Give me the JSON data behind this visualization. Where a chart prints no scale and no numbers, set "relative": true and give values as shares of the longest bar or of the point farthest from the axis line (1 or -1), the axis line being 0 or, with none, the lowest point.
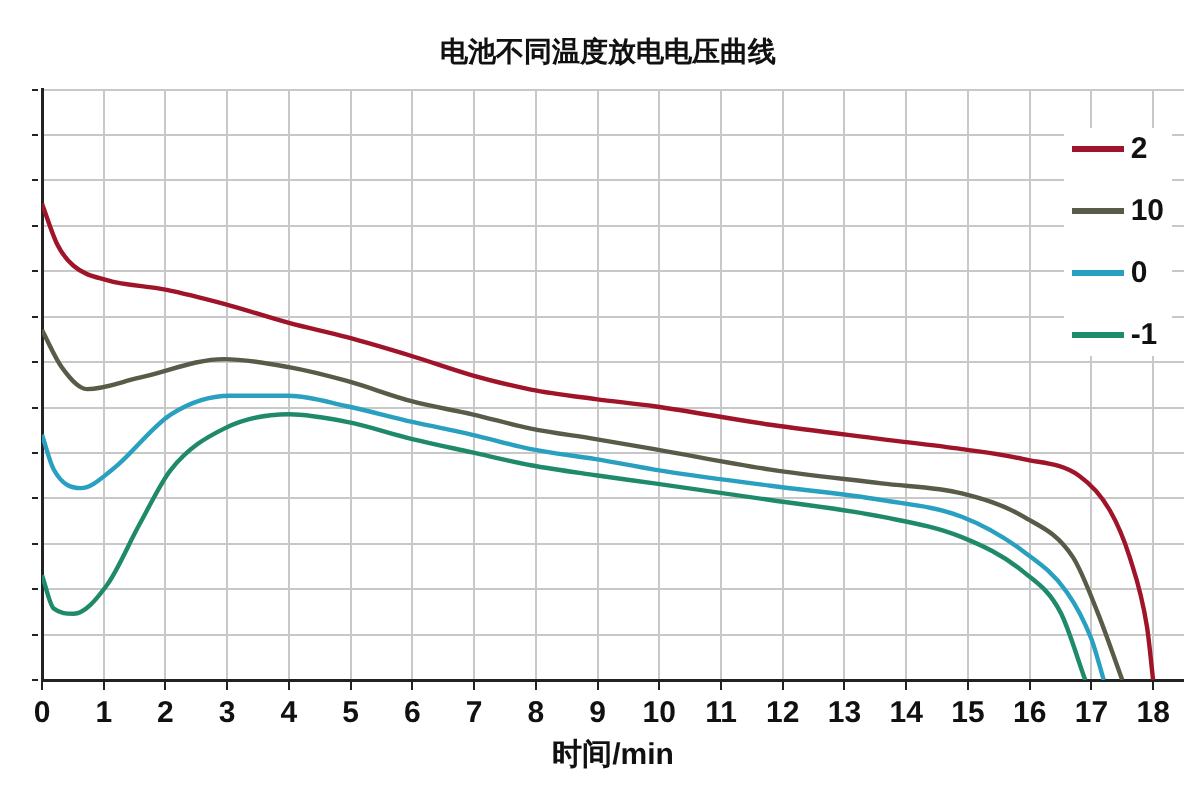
{
  "chart_data": {
    "type": "line",
    "title": "电池不同温度放电电压曲线",
    "xlabel": "时间/min",
    "relative": true,
    "xlim": [
      0,
      18.5
    ],
    "xticks": [
      0,
      1,
      2,
      3,
      4,
      5,
      6,
      7,
      8,
      9,
      10,
      11,
      12,
      13,
      14,
      15,
      16,
      17,
      18
    ],
    "grid": true,
    "legend": "top right",
    "marker": "none",
    "line_style": "solid",
    "series": [
      {
        "name": "2",
        "color": "#a0142a",
        "x": [
          0,
          0.25,
          0.51,
          1.05,
          2.0,
          2.95,
          4.0,
          4.94,
          6.0,
          6.97,
          7.92,
          8.97,
          9.92,
          11.8,
          13.6,
          14.9,
          15.9,
          16.8,
          17.3,
          17.62,
          17.9,
          18.0
        ],
        "values": [
          1.0,
          0.914,
          0.87,
          0.84,
          0.82,
          0.79,
          0.75,
          0.72,
          0.68,
          0.64,
          0.61,
          0.59,
          0.575,
          0.536,
          0.506,
          0.485,
          0.464,
          0.429,
          0.356,
          0.258,
          0.112,
          0
        ]
      },
      {
        "name": "10",
        "color": "#5a5a48",
        "x": [
          0,
          0.32,
          0.73,
          1.58,
          2.95,
          4.0,
          4.94,
          6.0,
          6.97,
          7.92,
          8.97,
          9.92,
          11.8,
          13.6,
          14.9,
          15.9,
          16.7,
          17.1,
          17.5
        ],
        "values": [
          0.735,
          0.657,
          0.611,
          0.635,
          0.674,
          0.657,
          0.628,
          0.585,
          0.558,
          0.528,
          0.506,
          0.485,
          0.442,
          0.413,
          0.392,
          0.343,
          0.258,
          0.142,
          0
        ]
      },
      {
        "name": "0",
        "color": "#2aa0c0",
        "x": [
          0,
          0.19,
          0.63,
          1.14,
          2.09,
          3.04,
          4.0,
          4.94,
          6.0,
          6.97,
          7.92,
          8.97,
          9.92,
          11.8,
          13.6,
          14.9,
          15.9,
          16.6,
          17.0,
          17.2
        ],
        "values": [
          0.515,
          0.442,
          0.403,
          0.442,
          0.558,
          0.597,
          0.597,
          0.575,
          0.542,
          0.515,
          0.485,
          0.464,
          0.442,
          0.408,
          0.378,
          0.343,
          0.27,
          0.185,
          0.086,
          0
        ]
      },
      {
        "name": "-1",
        "color": "#1f8a6a",
        "x": [
          0,
          0.19,
          0.51,
          1.05,
          1.58,
          2.09,
          2.95,
          4.0,
          4.94,
          6.0,
          6.97,
          7.92,
          8.97,
          9.92,
          11.8,
          13.6,
          14.9,
          15.9,
          16.5,
          16.9
        ],
        "values": [
          0.22,
          0.15,
          0.139,
          0.199,
          0.327,
          0.442,
          0.528,
          0.558,
          0.542,
          0.506,
          0.478,
          0.451,
          0.43,
          0.413,
          0.378,
          0.343,
          0.3,
          0.227,
          0.142,
          0
        ]
      }
    ]
  }
}
